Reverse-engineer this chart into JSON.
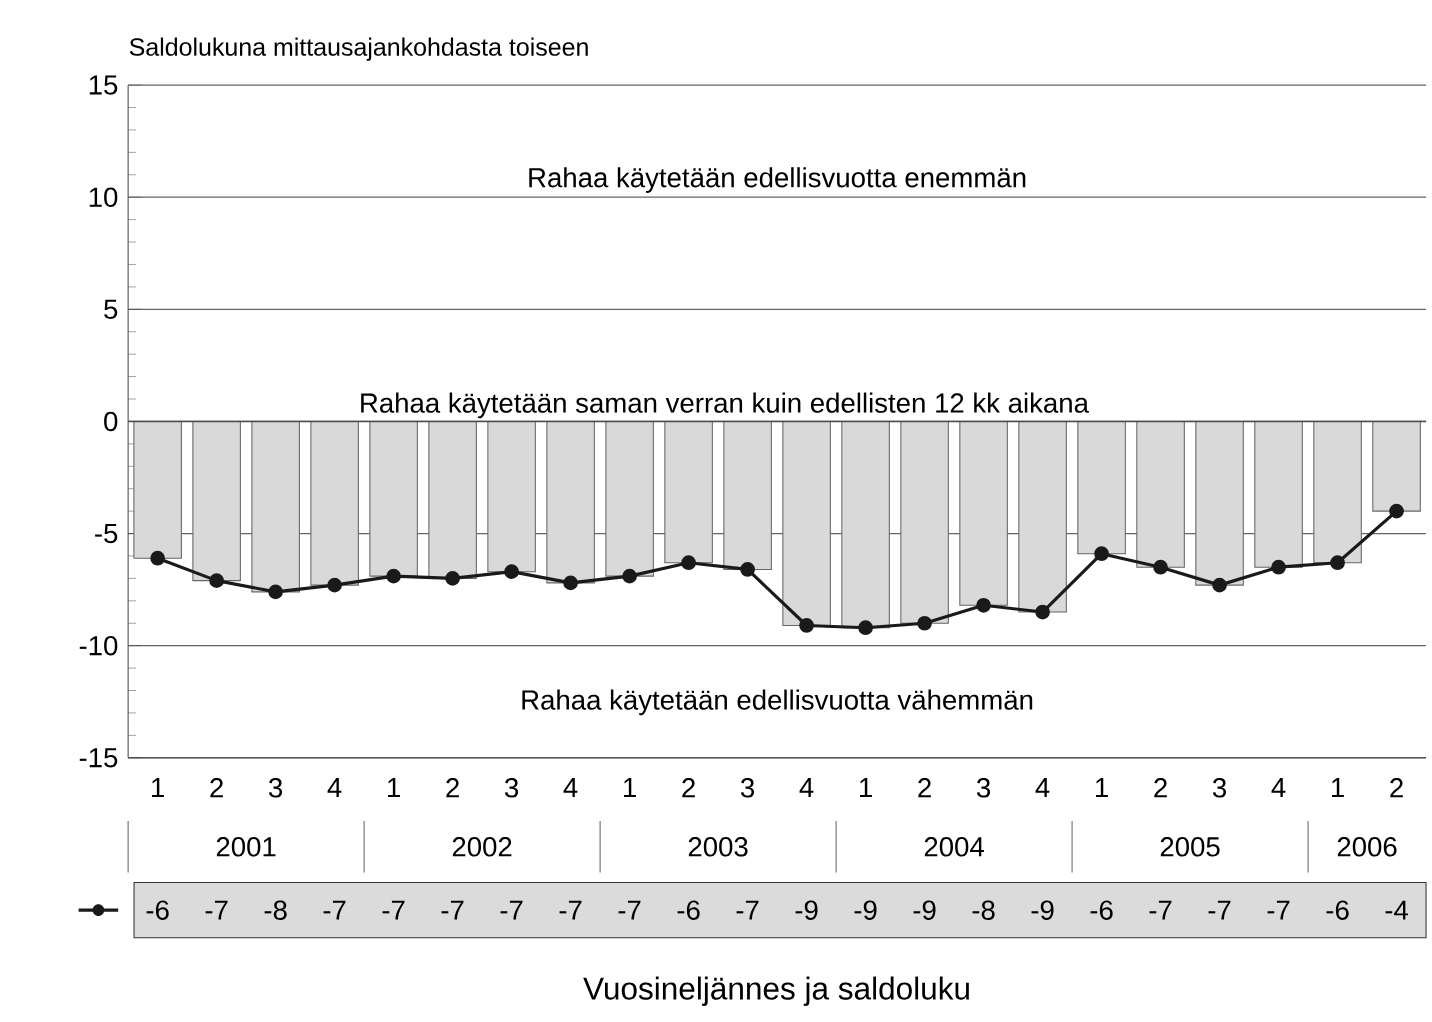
{
  "chart_data": {
    "type": "bar",
    "ylabel": "Saldolukuna mittausajankohdasta toiseen",
    "categories": [
      "1",
      "2",
      "3",
      "4",
      "1",
      "2",
      "3",
      "4",
      "1",
      "2",
      "3",
      "4",
      "1",
      "2",
      "3",
      "4",
      "1",
      "2",
      "3",
      "4",
      "1",
      "2"
    ],
    "series": [
      {
        "color": "#d9d9d9",
        "values": [
          -6.1,
          -7.1,
          -7.6,
          -7.3,
          -6.9,
          -7.0,
          -6.7,
          -7.2,
          -6.9,
          -6.3,
          -6.6,
          -9.1,
          -9.2,
          -9.0,
          -8.2,
          -8.5,
          -5.9,
          -6.5,
          -7.3,
          -6.5,
          -6.3,
          -4.0
        ]
      },
      {
        "type": "line",
        "color": "#1a1a1a",
        "marker": "circle",
        "values": [
          -6.1,
          -7.1,
          -7.6,
          -7.3,
          -6.9,
          -7.0,
          -6.7,
          -7.2,
          -6.9,
          -6.3,
          -6.6,
          -9.1,
          -9.2,
          -9.0,
          -8.2,
          -8.5,
          -5.9,
          -6.5,
          -7.3,
          -6.5,
          -6.3,
          -4.0
        ],
        "value_labels": [
          "-6",
          "-7",
          "-8",
          "-7",
          "-7",
          "-7",
          "-7",
          "-7",
          "-7",
          "-6",
          "-7",
          "-9",
          "-9",
          "-9",
          "-8",
          "-9",
          "-6",
          "-7",
          "-7",
          "-7",
          "-6",
          "-4"
        ]
      }
    ],
    "ylim": [
      -15,
      15
    ],
    "yticks": [
      -15,
      -10,
      -5,
      0,
      5,
      10,
      15
    ],
    "grid": "y",
    "ref_lines": [
      {
        "axis": "y",
        "value": 0,
        "label": "Rahaa käytetään saman verran kuin edellisten 12 kk aikana"
      }
    ],
    "annotations": [
      "Rahaa käytetään edellisvuotta enemmän",
      "Rahaa käytetään edellisvuotta vähemmän",
      "Vuosineljännes ja saldoluku",
      "2001",
      "2002",
      "2003",
      "2004",
      "2005",
      "2006"
    ]
  }
}
